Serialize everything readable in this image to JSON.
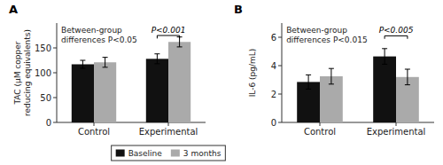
{
  "chart_data": [
    {
      "type": "bar",
      "title": "A",
      "ylabel": "TAC (μM copper\nreducing equivalents)",
      "categories": [
        "Control",
        "Experimental"
      ],
      "series": [
        {
          "name": "Baseline",
          "color": "#111111",
          "values": [
            117,
            128
          ],
          "errors": [
            8,
            10
          ]
        },
        {
          "name": "3 months",
          "color": "#aaaaaa",
          "values": [
            121,
            162
          ],
          "errors": [
            10,
            10
          ]
        }
      ],
      "ylim": [
        0,
        200
      ],
      "yticks": [
        0,
        50,
        100,
        150
      ],
      "annotations": [
        "Between-group",
        "differences P<0.05"
      ],
      "significance": {
        "category": "Experimental",
        "text": "P<0.001",
        "y": 175
      },
      "legend": "bottom"
    },
    {
      "type": "bar",
      "title": "B",
      "ylabel": "IL-6 (pg/mL)",
      "categories": [
        "Control",
        "Experimental"
      ],
      "series": [
        {
          "color": "#111111",
          "values": [
            2.85,
            4.65
          ],
          "errors": [
            0.5,
            0.55
          ]
        },
        {
          "color": "#aaaaaa",
          "values": [
            3.25,
            3.2
          ],
          "errors": [
            0.55,
            0.55
          ]
        }
      ],
      "ylim": [
        0,
        7
      ],
      "yticks": [
        0,
        2,
        4,
        6
      ],
      "annotations": [
        "Between-group",
        "differences P<0.015"
      ],
      "significance": {
        "category": "Experimental",
        "text": "P<0.005",
        "y": 6.1
      }
    }
  ]
}
